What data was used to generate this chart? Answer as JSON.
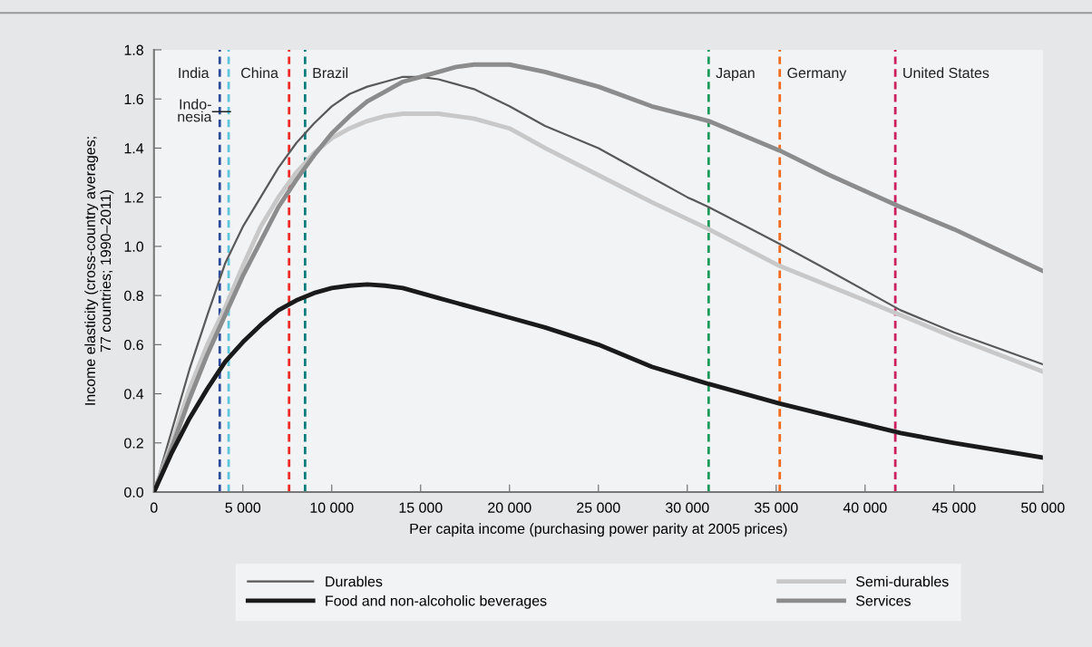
{
  "chart_data": {
    "type": "line",
    "xlabel": "Per capita income (purchasing power parity at 2005 prices)",
    "ylabel": "Income elasticity (cross-country averages;\n77 countries; 1990–2011)",
    "xlim": [
      0,
      50000
    ],
    "xticks": [
      0,
      {
        "value": 5000,
        "label": "5 000"
      },
      {
        "value": 10000,
        "label": "10 000"
      },
      {
        "value": 15000,
        "label": "15 000"
      },
      {
        "value": 20000,
        "label": "20 000"
      },
      {
        "value": 25000,
        "label": "25 000"
      },
      {
        "value": 30000,
        "label": "30 000"
      },
      {
        "value": 35000,
        "label": "35 000"
      },
      {
        "value": 40000,
        "label": "40 000"
      },
      {
        "value": 45000,
        "label": "45 000"
      },
      {
        "value": 50000,
        "label": "50 000"
      }
    ],
    "ylim": [
      0,
      1.8
    ],
    "yticks": [
      {
        "value": 0,
        "label": "0.0"
      },
      {
        "value": 0.2,
        "label": "0.2"
      },
      {
        "value": 0.4,
        "label": "0.4"
      },
      {
        "value": 0.6,
        "label": "0.6"
      },
      {
        "value": 0.8,
        "label": "0.8"
      },
      {
        "value": 1.0,
        "label": "1.0"
      },
      {
        "value": 1.2,
        "label": "1.2"
      },
      {
        "value": 1.4,
        "label": "1.4"
      },
      {
        "value": 1.6,
        "label": "1.6"
      },
      {
        "value": 1.8,
        "label": "1.8"
      }
    ],
    "grid": false,
    "legend": "bottom",
    "marker": "none",
    "line_style": "solid",
    "series": [
      {
        "name": "Durables",
        "color": "#595959",
        "x": [
          0,
          1000,
          2000,
          3000,
          4000,
          5000,
          6000,
          7000,
          8000,
          9000,
          10000,
          11000,
          12000,
          13000,
          14000,
          15000,
          16000,
          17000,
          18000,
          20000,
          22000,
          25000,
          28000,
          30000,
          31200,
          35200,
          38000,
          42000,
          45000,
          50000
        ],
        "values": [
          0,
          0.25,
          0.5,
          0.72,
          0.93,
          1.08,
          1.2,
          1.32,
          1.42,
          1.5,
          1.57,
          1.62,
          1.65,
          1.67,
          1.69,
          1.69,
          1.68,
          1.66,
          1.64,
          1.57,
          1.49,
          1.4,
          1.28,
          1.2,
          1.16,
          1.01,
          0.9,
          0.74,
          0.65,
          0.52
        ]
      },
      {
        "name": "Food and non-alcoholic beverages",
        "color": "#1a1a1a",
        "x": [
          0,
          1000,
          2000,
          3000,
          4000,
          5000,
          6000,
          7000,
          8000,
          9000,
          10000,
          11000,
          12000,
          13000,
          14000,
          15000,
          16000,
          17000,
          18000,
          20000,
          22000,
          25000,
          28000,
          31200,
          35200,
          38000,
          42000,
          45000,
          50000
        ],
        "values": [
          0,
          0.16,
          0.3,
          0.42,
          0.53,
          0.61,
          0.68,
          0.74,
          0.78,
          0.81,
          0.83,
          0.84,
          0.845,
          0.84,
          0.83,
          0.81,
          0.79,
          0.77,
          0.75,
          0.71,
          0.67,
          0.6,
          0.51,
          0.44,
          0.36,
          0.31,
          0.24,
          0.2,
          0.14
        ]
      },
      {
        "name": "Semi-durables",
        "color": "#c8c8c8",
        "x": [
          0,
          1000,
          2000,
          3000,
          4000,
          5000,
          6000,
          7000,
          8000,
          9000,
          10000,
          11000,
          12000,
          13000,
          14000,
          16000,
          18000,
          20000,
          22000,
          25000,
          28000,
          31200,
          35200,
          40000,
          42000,
          45000,
          50000
        ],
        "values": [
          0,
          0.2,
          0.42,
          0.6,
          0.75,
          0.92,
          1.08,
          1.2,
          1.3,
          1.38,
          1.44,
          1.48,
          1.51,
          1.53,
          1.54,
          1.54,
          1.52,
          1.48,
          1.4,
          1.29,
          1.18,
          1.07,
          0.92,
          0.78,
          0.72,
          0.63,
          0.49
        ]
      },
      {
        "name": "Services",
        "color": "#8c8c8c",
        "x": [
          0,
          1000,
          2000,
          3000,
          4000,
          5000,
          6000,
          7000,
          8000,
          9000,
          10000,
          11000,
          12000,
          13000,
          14000,
          15000,
          16000,
          17000,
          18000,
          20000,
          22000,
          25000,
          28000,
          31200,
          35200,
          38000,
          42000,
          45000,
          50000
        ],
        "values": [
          0,
          0.18,
          0.38,
          0.56,
          0.72,
          0.88,
          1.02,
          1.16,
          1.27,
          1.37,
          1.46,
          1.53,
          1.59,
          1.63,
          1.67,
          1.69,
          1.71,
          1.73,
          1.74,
          1.74,
          1.71,
          1.65,
          1.57,
          1.51,
          1.39,
          1.29,
          1.16,
          1.07,
          0.9
        ]
      }
    ],
    "ref_lines": [
      {
        "axis": "x",
        "value": 3700,
        "label": "India",
        "color": "#2b4c9b",
        "line_style": "dashed"
      },
      {
        "axis": "x",
        "value": 4200,
        "label": "Indo-\nnesia",
        "color": "#5bc5dc",
        "line_style": "dashed"
      },
      {
        "axis": "x",
        "value": 7600,
        "label": "China",
        "color": "#ee2a24",
        "line_style": "dashed"
      },
      {
        "axis": "x",
        "value": 8500,
        "label": "Brazil",
        "color": "#0a7d7d",
        "line_style": "dashed"
      },
      {
        "axis": "x",
        "value": 31200,
        "label": "Japan",
        "color": "#1a9a5b",
        "line_style": "dashed"
      },
      {
        "axis": "x",
        "value": 35200,
        "label": "Germany",
        "color": "#f26b1d",
        "line_style": "dashed"
      },
      {
        "axis": "x",
        "value": 41700,
        "label": "United States",
        "color": "#cc1f5f",
        "line_style": "dashed"
      }
    ]
  }
}
